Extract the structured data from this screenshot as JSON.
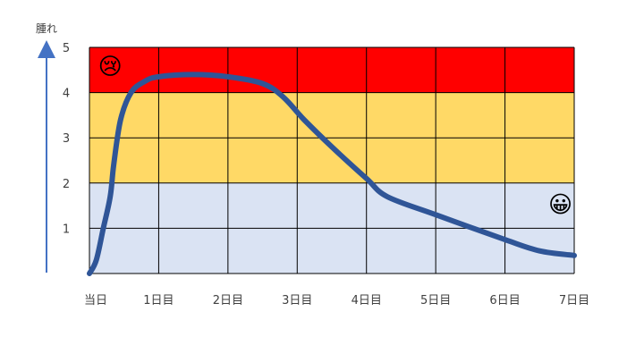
{
  "chart_data": {
    "type": "line",
    "title": "",
    "ylabel": "腫れ",
    "xlabel": "",
    "ylim": [
      0,
      5
    ],
    "xlim": [
      0,
      7
    ],
    "grid": true,
    "yticks": [
      "1",
      "2",
      "3",
      "4",
      "5"
    ],
    "xticks": [
      {
        "x": 0,
        "label": "当日"
      },
      {
        "x": 1,
        "label": "1日目"
      },
      {
        "x": 2,
        "label": "2日目"
      },
      {
        "x": 3,
        "label": "3日目"
      },
      {
        "x": 4,
        "label": "4日目"
      },
      {
        "x": 5,
        "label": "5日目"
      },
      {
        "x": 6,
        "label": "6日目"
      },
      {
        "x": 7,
        "label": "7日目"
      }
    ],
    "bands": [
      {
        "from": 0,
        "to": 2,
        "color": "#DAE3F3"
      },
      {
        "from": 2,
        "to": 4,
        "color": "#FFD966"
      },
      {
        "from": 4,
        "to": 5,
        "color": "#FF0000"
      }
    ],
    "line_color": "#2F5597",
    "axis_color": "#4472C4",
    "series": [
      {
        "name": "",
        "points": [
          [
            0,
            0
          ],
          [
            0.1,
            0.3
          ],
          [
            0.2,
            1
          ],
          [
            0.3,
            1.7
          ],
          [
            0.35,
            2.4
          ],
          [
            0.45,
            3.4
          ],
          [
            0.6,
            4.0
          ],
          [
            0.8,
            4.25
          ],
          [
            1.0,
            4.35
          ],
          [
            1.5,
            4.4
          ],
          [
            2.0,
            4.35
          ],
          [
            2.5,
            4.2
          ],
          [
            2.8,
            3.9
          ],
          [
            3.1,
            3.4
          ],
          [
            3.5,
            2.8
          ],
          [
            4.0,
            2.1
          ],
          [
            4.3,
            1.7
          ],
          [
            5.0,
            1.3
          ],
          [
            6.0,
            0.75
          ],
          [
            6.5,
            0.5
          ],
          [
            7.0,
            0.4
          ]
        ]
      }
    ],
    "markers": [
      {
        "emoji": "😢",
        "x": 0.3,
        "y": 4.6,
        "meaning": "crying-face"
      },
      {
        "emoji": "😀",
        "x": 6.8,
        "y": 1.55,
        "meaning": "smiling-face"
      }
    ]
  }
}
